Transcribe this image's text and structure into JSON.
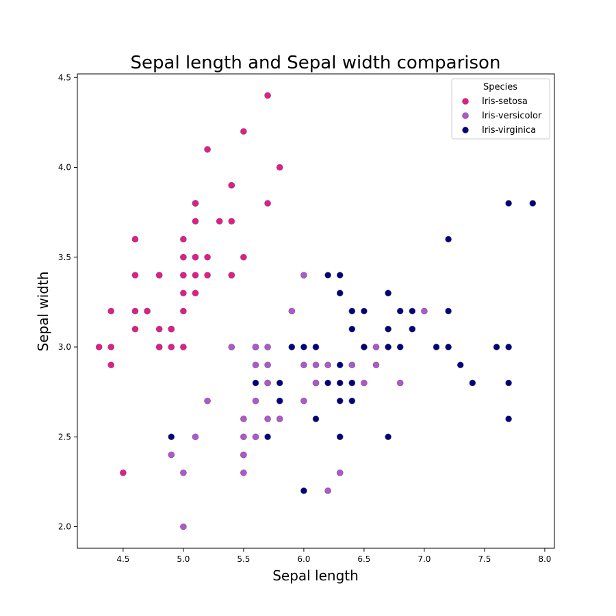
{
  "chart_data": {
    "type": "scatter",
    "title": "Sepal length and Sepal width comparison",
    "xlabel": "Sepal length",
    "ylabel": "Sepal width",
    "xlim": [
      4.12,
      8.08
    ],
    "ylim": [
      1.88,
      4.52
    ],
    "xticks": [
      4.5,
      5.0,
      5.5,
      6.0,
      6.5,
      7.0,
      7.5,
      8.0
    ],
    "yticks": [
      2.0,
      2.5,
      3.0,
      3.5,
      4.0,
      4.5
    ],
    "grid": false,
    "legend": {
      "title": "Species",
      "position": "top-right"
    },
    "series": [
      {
        "name": "Iris-setosa",
        "color": "#e8198b",
        "points": [
          [
            5.1,
            3.5
          ],
          [
            4.9,
            3.0
          ],
          [
            4.7,
            3.2
          ],
          [
            4.6,
            3.1
          ],
          [
            5.0,
            3.6
          ],
          [
            5.4,
            3.9
          ],
          [
            4.6,
            3.4
          ],
          [
            5.0,
            3.4
          ],
          [
            4.4,
            2.9
          ],
          [
            4.9,
            3.1
          ],
          [
            5.4,
            3.7
          ],
          [
            4.8,
            3.4
          ],
          [
            4.8,
            3.0
          ],
          [
            4.3,
            3.0
          ],
          [
            5.8,
            4.0
          ],
          [
            5.7,
            4.4
          ],
          [
            5.4,
            3.9
          ],
          [
            5.1,
            3.5
          ],
          [
            5.7,
            3.8
          ],
          [
            5.1,
            3.8
          ],
          [
            5.4,
            3.4
          ],
          [
            5.1,
            3.7
          ],
          [
            4.6,
            3.6
          ],
          [
            5.1,
            3.3
          ],
          [
            4.8,
            3.4
          ],
          [
            5.0,
            3.0
          ],
          [
            5.0,
            3.4
          ],
          [
            5.2,
            3.5
          ],
          [
            5.2,
            3.4
          ],
          [
            4.7,
            3.2
          ],
          [
            4.8,
            3.1
          ],
          [
            5.4,
            3.4
          ],
          [
            5.2,
            4.1
          ],
          [
            5.5,
            4.2
          ],
          [
            4.9,
            3.1
          ],
          [
            5.0,
            3.2
          ],
          [
            5.5,
            3.5
          ],
          [
            4.9,
            3.1
          ],
          [
            4.4,
            3.0
          ],
          [
            5.1,
            3.4
          ],
          [
            5.0,
            3.5
          ],
          [
            4.5,
            2.3
          ],
          [
            4.4,
            3.2
          ],
          [
            5.0,
            3.5
          ],
          [
            5.1,
            3.8
          ],
          [
            4.8,
            3.0
          ],
          [
            5.1,
            3.8
          ],
          [
            4.6,
            3.2
          ],
          [
            5.3,
            3.7
          ],
          [
            5.0,
            3.3
          ]
        ]
      },
      {
        "name": "Iris-versicolor",
        "color": "#b156d0",
        "points": [
          [
            7.0,
            3.2
          ],
          [
            6.4,
            3.2
          ],
          [
            6.9,
            3.1
          ],
          [
            5.5,
            2.3
          ],
          [
            6.5,
            2.8
          ],
          [
            5.7,
            2.8
          ],
          [
            6.3,
            3.3
          ],
          [
            4.9,
            2.4
          ],
          [
            6.6,
            2.9
          ],
          [
            5.2,
            2.7
          ],
          [
            5.0,
            2.0
          ],
          [
            5.9,
            3.0
          ],
          [
            6.0,
            2.2
          ],
          [
            6.1,
            2.9
          ],
          [
            5.6,
            2.9
          ],
          [
            6.7,
            3.1
          ],
          [
            5.6,
            3.0
          ],
          [
            5.8,
            2.7
          ],
          [
            6.2,
            2.2
          ],
          [
            5.6,
            2.5
          ],
          [
            5.9,
            3.2
          ],
          [
            6.1,
            2.8
          ],
          [
            6.3,
            2.5
          ],
          [
            6.1,
            2.8
          ],
          [
            6.4,
            2.9
          ],
          [
            6.6,
            3.0
          ],
          [
            6.8,
            2.8
          ],
          [
            6.7,
            3.0
          ],
          [
            6.0,
            2.9
          ],
          [
            5.7,
            2.6
          ],
          [
            5.5,
            2.4
          ],
          [
            5.5,
            2.4
          ],
          [
            5.8,
            2.7
          ],
          [
            6.0,
            2.7
          ],
          [
            5.4,
            3.0
          ],
          [
            6.0,
            3.4
          ],
          [
            6.7,
            3.1
          ],
          [
            6.3,
            2.3
          ],
          [
            5.6,
            3.0
          ],
          [
            5.5,
            2.5
          ],
          [
            5.5,
            2.6
          ],
          [
            6.1,
            3.0
          ],
          [
            5.8,
            2.6
          ],
          [
            5.0,
            2.3
          ],
          [
            5.6,
            2.7
          ],
          [
            5.7,
            3.0
          ],
          [
            5.7,
            2.9
          ],
          [
            6.2,
            2.9
          ],
          [
            5.1,
            2.5
          ],
          [
            5.7,
            2.8
          ]
        ]
      },
      {
        "name": "Iris-virginica",
        "color": "#000080",
        "points": [
          [
            6.3,
            3.3
          ],
          [
            5.8,
            2.7
          ],
          [
            7.1,
            3.0
          ],
          [
            6.3,
            2.9
          ],
          [
            6.5,
            3.0
          ],
          [
            7.6,
            3.0
          ],
          [
            4.9,
            2.5
          ],
          [
            7.3,
            2.9
          ],
          [
            6.7,
            2.5
          ],
          [
            7.2,
            3.6
          ],
          [
            6.5,
            3.2
          ],
          [
            6.4,
            2.7
          ],
          [
            6.8,
            3.0
          ],
          [
            5.7,
            2.5
          ],
          [
            5.8,
            2.8
          ],
          [
            6.4,
            3.2
          ],
          [
            6.5,
            3.0
          ],
          [
            7.7,
            3.8
          ],
          [
            7.7,
            2.6
          ],
          [
            6.0,
            2.2
          ],
          [
            6.9,
            3.2
          ],
          [
            5.6,
            2.8
          ],
          [
            7.7,
            2.8
          ],
          [
            6.3,
            2.7
          ],
          [
            6.7,
            3.3
          ],
          [
            7.2,
            3.2
          ],
          [
            6.2,
            2.8
          ],
          [
            6.1,
            3.0
          ],
          [
            6.4,
            2.8
          ],
          [
            7.2,
            3.0
          ],
          [
            7.4,
            2.8
          ],
          [
            7.9,
            3.8
          ],
          [
            6.4,
            2.8
          ],
          [
            6.3,
            2.8
          ],
          [
            6.1,
            2.6
          ],
          [
            7.7,
            3.0
          ],
          [
            6.3,
            3.4
          ],
          [
            6.4,
            3.1
          ],
          [
            6.0,
            3.0
          ],
          [
            6.9,
            3.1
          ],
          [
            6.7,
            3.1
          ],
          [
            6.9,
            3.1
          ],
          [
            5.8,
            2.7
          ],
          [
            6.8,
            3.2
          ],
          [
            6.7,
            3.3
          ],
          [
            6.7,
            3.0
          ],
          [
            6.3,
            2.5
          ],
          [
            6.5,
            3.0
          ],
          [
            6.2,
            3.4
          ],
          [
            5.9,
            3.0
          ]
        ]
      }
    ]
  }
}
